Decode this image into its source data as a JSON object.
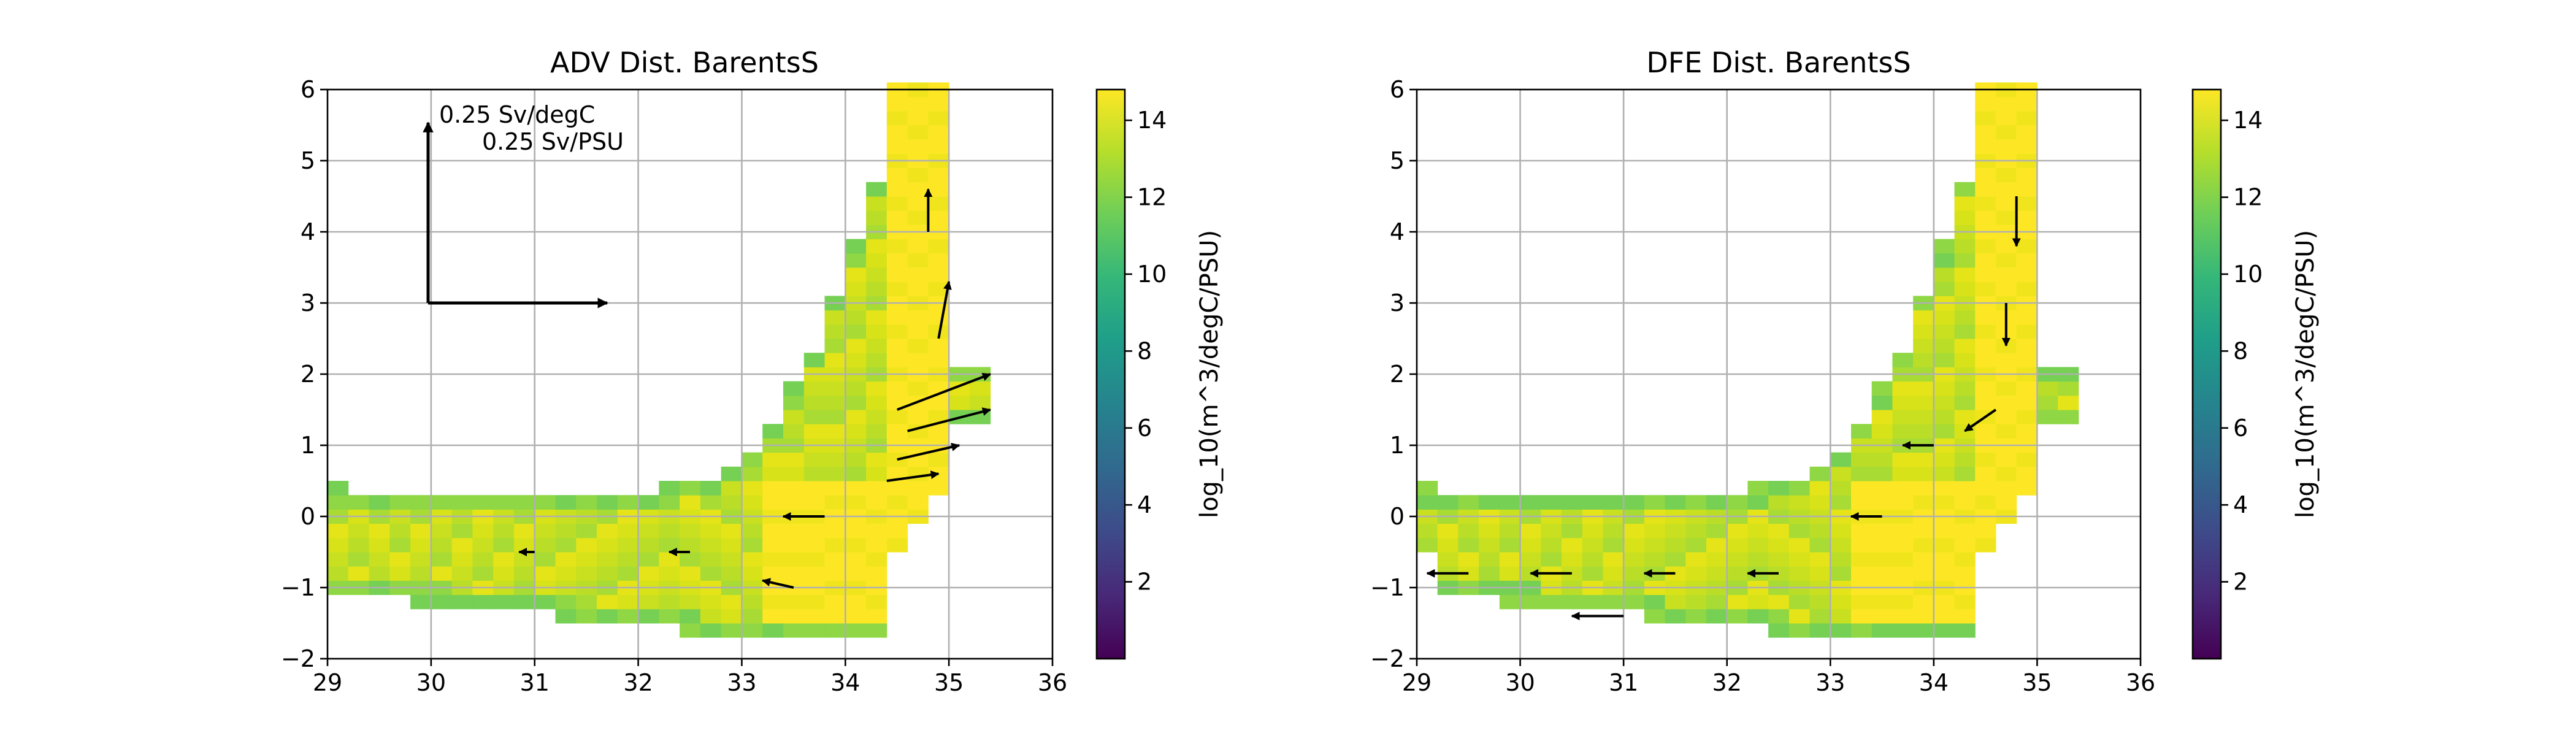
{
  "colorbar": {
    "label": "log_10(m^3/degC/PSU)",
    "ticks": [
      "2",
      "4",
      "6",
      "8",
      "10",
      "12",
      "14"
    ],
    "tick_values": [
      2,
      4,
      6,
      8,
      10,
      12,
      14
    ],
    "range": [
      0,
      14.8
    ],
    "colormap": [
      "#440154",
      "#482878",
      "#3e4a89",
      "#31688e",
      "#26828e",
      "#1f9e89",
      "#35b779",
      "#6ece58",
      "#b5de2b",
      "#fde725"
    ]
  },
  "chart_data": [
    {
      "type": "heatmap",
      "title": "ADV Dist. BarentsS",
      "xlim": [
        29,
        36
      ],
      "ylim": [
        -2,
        6
      ],
      "xticks": [
        "29",
        "30",
        "31",
        "32",
        "33",
        "34",
        "35",
        "36"
      ],
      "yticks": [
        "−2",
        "−1",
        "0",
        "1",
        "2",
        "3",
        "4",
        "5",
        "6"
      ],
      "xlabel": "",
      "ylabel": "",
      "grid": true,
      "scale_annotation": {
        "temperature": "0.25 Sv/degC",
        "salinity": "0.25 Sv/PSU"
      },
      "vectors": [
        {
          "x": 34.5,
          "y": 1.5,
          "u": 0.9,
          "v": 0.5
        },
        {
          "x": 34.6,
          "y": 1.2,
          "u": 0.8,
          "v": 0.3
        },
        {
          "x": 34.5,
          "y": 0.8,
          "u": 0.6,
          "v": 0.2
        },
        {
          "x": 34.4,
          "y": 0.5,
          "u": 0.5,
          "v": 0.1
        },
        {
          "x": 34.9,
          "y": 2.5,
          "u": 0.1,
          "v": 0.8
        },
        {
          "x": 34.8,
          "y": 4.0,
          "u": 0.0,
          "v": 0.6
        },
        {
          "x": 33.8,
          "y": 0.0,
          "u": -0.4,
          "v": 0.0
        },
        {
          "x": 33.5,
          "y": -1.0,
          "u": -0.3,
          "v": 0.1
        },
        {
          "x": 32.5,
          "y": -0.5,
          "u": -0.2,
          "v": 0.0
        },
        {
          "x": 31.0,
          "y": -0.5,
          "u": -0.15,
          "v": 0.0
        }
      ]
    },
    {
      "type": "heatmap",
      "title": "DFE Dist. BarentsS",
      "xlim": [
        29,
        36
      ],
      "ylim": [
        -2,
        6
      ],
      "xticks": [
        "29",
        "30",
        "31",
        "32",
        "33",
        "34",
        "35",
        "36"
      ],
      "yticks": [
        "−2",
        "−1",
        "0",
        "1",
        "2",
        "3",
        "4",
        "5",
        "6"
      ],
      "xlabel": "",
      "ylabel": "",
      "grid": true,
      "vectors": [
        {
          "x": 34.8,
          "y": 4.5,
          "u": 0.0,
          "v": -0.7
        },
        {
          "x": 34.7,
          "y": 3.0,
          "u": 0.0,
          "v": -0.6
        },
        {
          "x": 34.6,
          "y": 1.5,
          "u": -0.3,
          "v": -0.3
        },
        {
          "x": 34.0,
          "y": 1.0,
          "u": -0.3,
          "v": 0.0
        },
        {
          "x": 33.5,
          "y": 0.0,
          "u": -0.3,
          "v": 0.0
        },
        {
          "x": 32.5,
          "y": -0.8,
          "u": -0.3,
          "v": 0.0
        },
        {
          "x": 31.5,
          "y": -0.8,
          "u": -0.3,
          "v": 0.0
        },
        {
          "x": 30.5,
          "y": -0.8,
          "u": -0.4,
          "v": 0.0
        },
        {
          "x": 29.5,
          "y": -0.8,
          "u": -0.4,
          "v": 0.0
        },
        {
          "x": 31.0,
          "y": -1.4,
          "u": -0.5,
          "v": 0.0
        }
      ]
    }
  ]
}
